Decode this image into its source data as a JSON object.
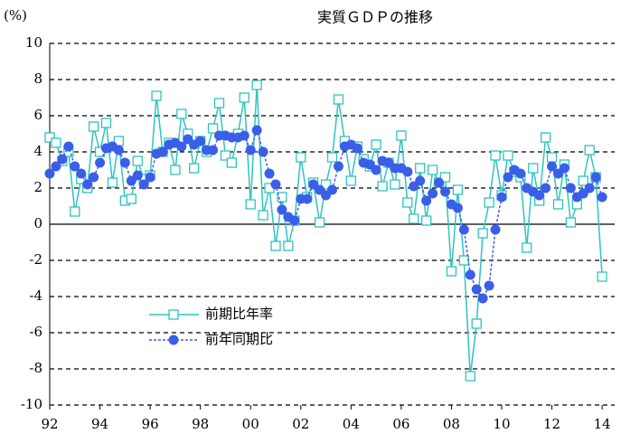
{
  "chart_data": {
    "type": "line",
    "title": "実質ＧＤＰの推移",
    "y_label": "(%)",
    "x": [
      1992,
      1992.25,
      1992.5,
      1992.75,
      1993,
      1993.25,
      1993.5,
      1993.75,
      1994,
      1994.25,
      1994.5,
      1994.75,
      1995,
      1995.25,
      1995.5,
      1995.75,
      1996,
      1996.25,
      1996.5,
      1996.75,
      1997,
      1997.25,
      1997.5,
      1997.75,
      1998,
      1998.25,
      1998.5,
      1998.75,
      1999,
      1999.25,
      1999.5,
      1999.75,
      2000,
      2000.25,
      2000.5,
      2000.75,
      2001,
      2001.25,
      2001.5,
      2001.75,
      2002,
      2002.25,
      2002.5,
      2002.75,
      2003,
      2003.25,
      2003.5,
      2003.75,
      2004,
      2004.25,
      2004.5,
      2004.75,
      2005,
      2005.25,
      2005.5,
      2005.75,
      2006,
      2006.25,
      2006.5,
      2006.75,
      2007,
      2007.25,
      2007.5,
      2007.75,
      2008,
      2008.25,
      2008.5,
      2008.75,
      2009,
      2009.25,
      2009.5,
      2009.75,
      2010,
      2010.25,
      2010.5,
      2010.75,
      2011,
      2011.25,
      2011.5,
      2011.75,
      2012,
      2012.25,
      2012.5,
      2012.75,
      2013,
      2013.25,
      2013.5,
      2013.75,
      2014
    ],
    "series": [
      {
        "name": "前期比年率",
        "color": "#2ec4c0",
        "marker": "square",
        "dashed": false,
        "values": [
          4.8,
          4.5,
          3.5,
          4.0,
          0.7,
          2.5,
          2.0,
          5.4,
          4.0,
          5.6,
          2.3,
          4.6,
          1.3,
          1.4,
          3.5,
          2.5,
          2.7,
          7.1,
          4.0,
          4.5,
          3.0,
          6.1,
          5.0,
          3.1,
          4.6,
          4.0,
          5.3,
          6.7,
          3.8,
          3.4,
          5.0,
          7.0,
          1.1,
          7.7,
          0.5,
          2.0,
          -1.2,
          1.5,
          -1.2,
          0.2,
          3.7,
          1.5,
          2.3,
          0.1,
          2.2,
          3.7,
          6.9,
          4.6,
          2.4,
          4.3,
          3.6,
          3.2,
          4.4,
          2.1,
          3.4,
          2.2,
          4.9,
          1.2,
          0.3,
          3.1,
          0.2,
          3.0,
          2.3,
          2.6,
          -2.6,
          1.9,
          -2.0,
          -8.4,
          -5.5,
          -0.5,
          1.2,
          3.8,
          1.6,
          3.8,
          2.9,
          2.6,
          -1.3,
          3.1,
          1.3,
          4.8,
          3.7,
          1.1,
          3.3,
          0.1,
          1.1,
          2.4,
          4.1,
          2.6,
          -2.9
        ]
      },
      {
        "name": "前年同期比",
        "color": "#3a5ee8",
        "marker": "circle",
        "dashed": true,
        "values": [
          2.8,
          3.2,
          3.6,
          4.3,
          3.2,
          2.8,
          2.2,
          2.6,
          3.4,
          4.2,
          4.3,
          4.1,
          3.4,
          2.4,
          2.7,
          2.2,
          2.6,
          3.9,
          4.0,
          4.4,
          4.5,
          4.3,
          4.7,
          4.4,
          4.6,
          4.1,
          4.1,
          4.9,
          4.9,
          4.8,
          4.8,
          4.9,
          4.1,
          5.2,
          4.0,
          2.8,
          2.2,
          0.8,
          0.4,
          0.2,
          1.4,
          1.4,
          2.2,
          1.9,
          1.6,
          1.9,
          3.2,
          4.3,
          4.4,
          4.2,
          3.4,
          3.3,
          3.0,
          3.5,
          3.4,
          3.1,
          3.1,
          2.9,
          2.1,
          2.4,
          1.3,
          1.7,
          2.3,
          1.8,
          1.1,
          0.9,
          -0.3,
          -2.8,
          -3.6,
          -4.1,
          -3.4,
          -0.3,
          1.5,
          2.6,
          3.0,
          2.8,
          2.0,
          1.8,
          1.6,
          2.0,
          3.2,
          2.8,
          3.1,
          2.0,
          1.5,
          1.7,
          2.0,
          2.6,
          1.5
        ]
      }
    ],
    "xlim": [
      1992,
      2014.5
    ],
    "xticks": [
      {
        "value": 1992,
        "label": "92"
      },
      {
        "value": 1994,
        "label": "94"
      },
      {
        "value": 1996,
        "label": "96"
      },
      {
        "value": 1998,
        "label": "98"
      },
      {
        "value": 2000,
        "label": "00"
      },
      {
        "value": 2002,
        "label": "02"
      },
      {
        "value": 2004,
        "label": "04"
      },
      {
        "value": 2006,
        "label": "06"
      },
      {
        "value": 2008,
        "label": "08"
      },
      {
        "value": 2010,
        "label": "10"
      },
      {
        "value": 2012,
        "label": "12"
      },
      {
        "value": 2014,
        "label": "14"
      }
    ],
    "ylim": [
      -10,
      10
    ],
    "yticks": [
      -10,
      -8,
      -6,
      -4,
      -2,
      0,
      2,
      4,
      6,
      8,
      10
    ],
    "grid": true,
    "legend": "lower left"
  }
}
